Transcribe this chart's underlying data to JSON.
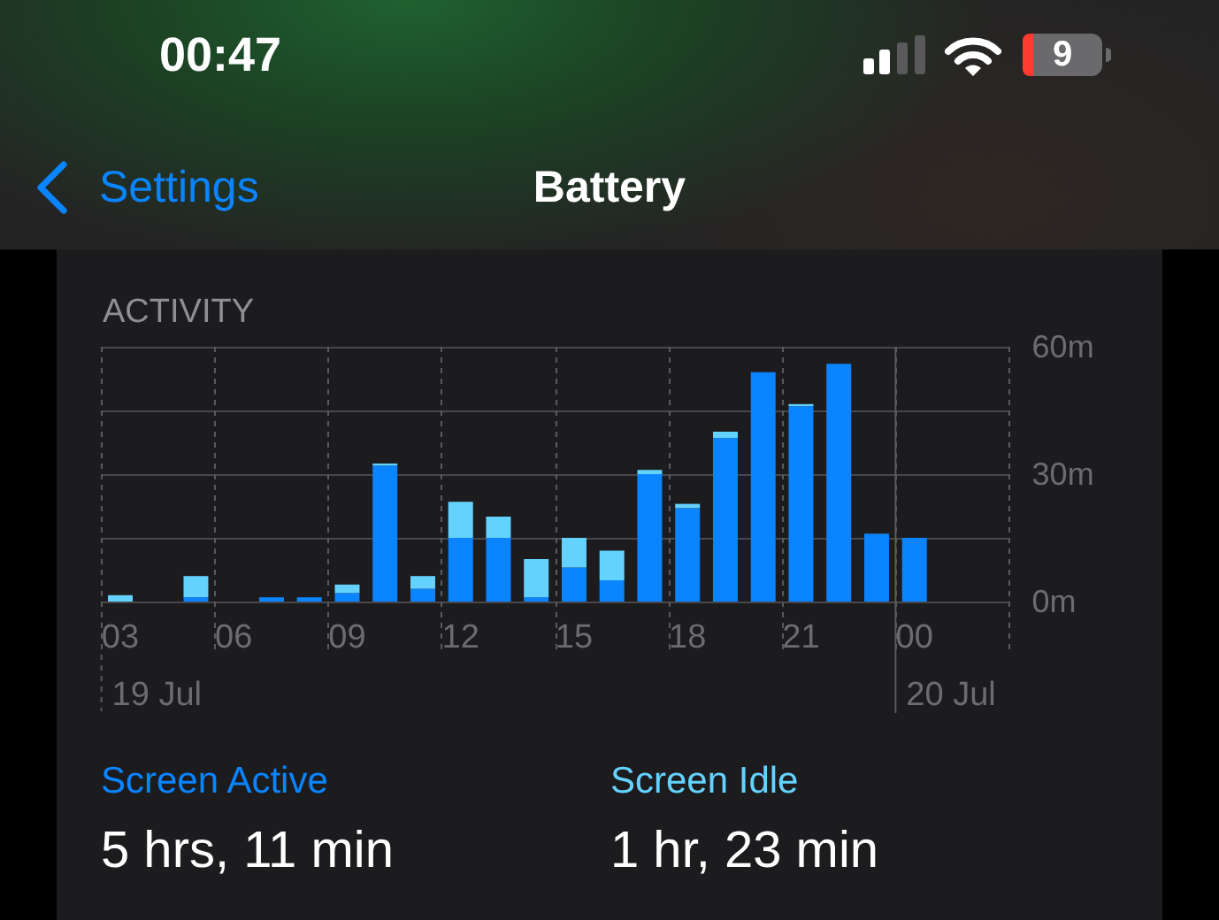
{
  "chart_data": {
    "type": "bar",
    "title": "Battery",
    "subtitle": "ACTIVITY",
    "categories": [
      "03",
      null,
      null,
      "06",
      null,
      null,
      "09",
      null,
      null,
      "12",
      null,
      null,
      "15",
      null,
      null,
      "18",
      null,
      null,
      "21",
      null,
      null,
      "00",
      null,
      null
    ],
    "series": [
      {
        "name": "Screen Active",
        "color": "#0a84ff",
        "values": [
          null,
          null,
          1,
          null,
          1,
          1,
          2,
          32,
          3,
          15,
          15,
          1,
          8,
          5,
          30,
          22,
          38.5,
          54,
          46,
          56,
          16,
          15,
          null,
          null
        ]
      },
      {
        "name": "Screen Idle",
        "color": "#64d2ff",
        "values": [
          1.5,
          null,
          5,
          null,
          null,
          null,
          2,
          0.5,
          3,
          8.5,
          5,
          9,
          7,
          7,
          1,
          1,
          1.5,
          null,
          0.5,
          null,
          null,
          null,
          null,
          null
        ]
      }
    ],
    "stacked": true,
    "ylim": [
      0,
      60
    ],
    "yticks": [
      {
        "value": 0,
        "label": "0m"
      },
      {
        "value": 15,
        "label": null
      },
      {
        "value": 30,
        "label": "30m"
      },
      {
        "value": 45,
        "label": null
      },
      {
        "value": 60,
        "label": "60m"
      }
    ],
    "grid": true,
    "legend": "bottom",
    "ref_lines": [
      {
        "axis": "x",
        "value": "00"
      }
    ],
    "annotations": [
      "00:47",
      "9",
      "Settings",
      "19 Jul",
      "20 Jul",
      "5 hrs, 11 min",
      "1 hr, 23 min"
    ]
  }
}
